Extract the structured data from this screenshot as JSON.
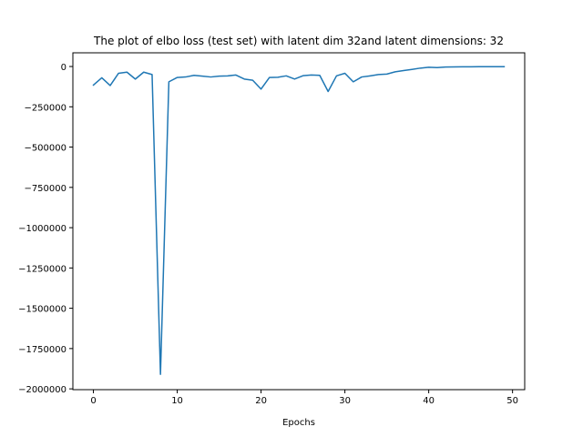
{
  "chart_data": {
    "type": "line",
    "title": "The plot of elbo loss (test set) with latent dim 32and latent dimensions: 32",
    "xlabel": "Epochs",
    "ylabel": "",
    "xlim": [
      -2.45,
      51.45
    ],
    "ylim": [
      -2005000,
      85000
    ],
    "xticks": [
      0,
      10,
      20,
      30,
      40,
      50
    ],
    "xtick_labels": [
      "0",
      "10",
      "20",
      "30",
      "40",
      "50"
    ],
    "yticks": [
      0,
      -250000,
      -500000,
      -750000,
      -1000000,
      -1250000,
      -1500000,
      -1750000,
      -2000000
    ],
    "ytick_labels": [
      "0",
      "−250000",
      "−500000",
      "−750000",
      "−1000000",
      "−1250000",
      "−1500000",
      "−1750000",
      "−2000000"
    ],
    "grid": false,
    "series": [
      {
        "color": "#1f77b4",
        "x": [
          0,
          1,
          2,
          3,
          4,
          5,
          6,
          7,
          8,
          9,
          10,
          11,
          12,
          13,
          14,
          15,
          16,
          17,
          18,
          19,
          20,
          21,
          22,
          23,
          24,
          25,
          26,
          27,
          28,
          29,
          30,
          31,
          32,
          33,
          34,
          35,
          36,
          37,
          38,
          39,
          40,
          41,
          42,
          43,
          44,
          45,
          46,
          47,
          48,
          49
        ],
        "y": [
          -115000,
          -70000,
          -118000,
          -42000,
          -35000,
          -78000,
          -35000,
          -50000,
          -1910000,
          -95000,
          -68000,
          -65000,
          -55000,
          -60000,
          -65000,
          -60000,
          -58000,
          -53000,
          -78000,
          -85000,
          -140000,
          -68000,
          -67000,
          -58000,
          -78000,
          -57000,
          -53000,
          -55000,
          -155000,
          -58000,
          -42000,
          -95000,
          -65000,
          -58000,
          -50000,
          -47000,
          -33000,
          -25000,
          -18000,
          -10000,
          -5000,
          -7000,
          -3000,
          -2500,
          -2000,
          -1800,
          -1500,
          -1200,
          -1000,
          -900
        ]
      }
    ]
  }
}
